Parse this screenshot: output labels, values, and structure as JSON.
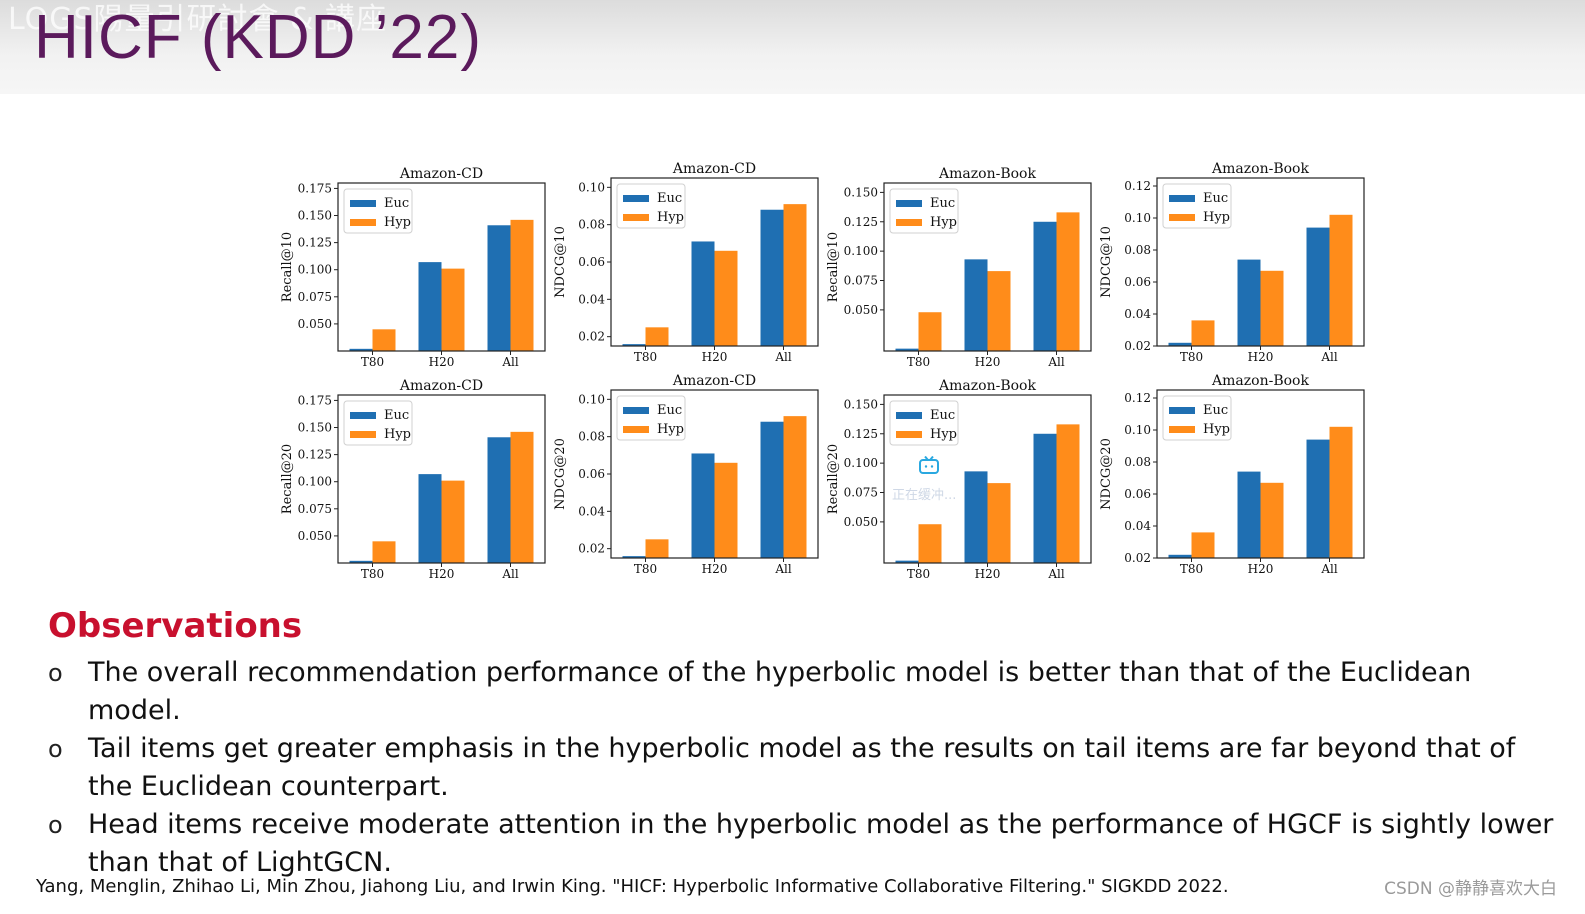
{
  "header": {
    "title": "HICF (KDD ’22)",
    "ghost_text": "LOGS陽量引研討會 & 講座"
  },
  "colors": {
    "euc": "#1f6fb2",
    "hyp": "#ff8c1a",
    "title": "#5b1a5c",
    "heading": "#c8102e"
  },
  "chart_data": [
    {
      "type": "bar",
      "title": "Amazon-CD",
      "ylabel": "Recall@10",
      "categories": [
        "T80",
        "H20",
        "All"
      ],
      "series": [
        {
          "name": "Euc",
          "values": [
            0.027,
            0.107,
            0.141
          ]
        },
        {
          "name": "Hyp",
          "values": [
            0.045,
            0.101,
            0.146
          ]
        }
      ],
      "ylim": [
        0.025,
        0.18
      ],
      "ticks": [
        0.05,
        0.075,
        0.1,
        0.125,
        0.15,
        0.175
      ],
      "tick_labels": [
        "0.050",
        "0.075",
        "0.100",
        "0.125",
        "0.150",
        "0.175"
      ],
      "legend": "top-left"
    },
    {
      "type": "bar",
      "title": "Amazon-CD",
      "ylabel": "NDCG@10",
      "categories": [
        "T80",
        "H20",
        "All"
      ],
      "series": [
        {
          "name": "Euc",
          "values": [
            0.016,
            0.071,
            0.088
          ]
        },
        {
          "name": "Hyp",
          "values": [
            0.025,
            0.066,
            0.091
          ]
        }
      ],
      "ylim": [
        0.015,
        0.105
      ],
      "ticks": [
        0.02,
        0.04,
        0.06,
        0.08,
        0.1
      ],
      "tick_labels": [
        "0.02",
        "0.04",
        "0.06",
        "0.08",
        "0.10"
      ],
      "legend": "top-left"
    },
    {
      "type": "bar",
      "title": "Amazon-Book",
      "ylabel": "Recall@10",
      "categories": [
        "T80",
        "H20",
        "All"
      ],
      "series": [
        {
          "name": "Euc",
          "values": [
            0.017,
            0.093,
            0.125
          ]
        },
        {
          "name": "Hyp",
          "values": [
            0.048,
            0.083,
            0.133
          ]
        }
      ],
      "ylim": [
        0.015,
        0.158
      ],
      "ticks": [
        0.05,
        0.075,
        0.1,
        0.125,
        0.15
      ],
      "tick_labels": [
        "0.050",
        "0.075",
        "0.100",
        "0.125",
        "0.150"
      ],
      "legend": "top-left"
    },
    {
      "type": "bar",
      "title": "Amazon-Book",
      "ylabel": "NDCG@10",
      "categories": [
        "T80",
        "H20",
        "All"
      ],
      "series": [
        {
          "name": "Euc",
          "values": [
            0.022,
            0.074,
            0.094
          ]
        },
        {
          "name": "Hyp",
          "values": [
            0.036,
            0.067,
            0.102
          ]
        }
      ],
      "ylim": [
        0.02,
        0.125
      ],
      "ticks": [
        0.02,
        0.04,
        0.06,
        0.08,
        0.1,
        0.12
      ],
      "tick_labels": [
        "0.02",
        "0.04",
        "0.06",
        "0.08",
        "0.10",
        "0.12"
      ],
      "legend": "top-left"
    },
    {
      "type": "bar",
      "title": "Amazon-CD",
      "ylabel": "Recall@20",
      "categories": [
        "T80",
        "H20",
        "All"
      ],
      "series": [
        {
          "name": "Euc",
          "values": [
            0.027,
            0.107,
            0.141
          ]
        },
        {
          "name": "Hyp",
          "values": [
            0.045,
            0.101,
            0.146
          ]
        }
      ],
      "ylim": [
        0.025,
        0.18
      ],
      "ticks": [
        0.05,
        0.075,
        0.1,
        0.125,
        0.15,
        0.175
      ],
      "tick_labels": [
        "0.050",
        "0.075",
        "0.100",
        "0.125",
        "0.150",
        "0.175"
      ],
      "legend": "top-left"
    },
    {
      "type": "bar",
      "title": "Amazon-CD",
      "ylabel": "NDCG@20",
      "categories": [
        "T80",
        "H20",
        "All"
      ],
      "series": [
        {
          "name": "Euc",
          "values": [
            0.016,
            0.071,
            0.088
          ]
        },
        {
          "name": "Hyp",
          "values": [
            0.025,
            0.066,
            0.091
          ]
        }
      ],
      "ylim": [
        0.015,
        0.105
      ],
      "ticks": [
        0.02,
        0.04,
        0.06,
        0.08,
        0.1
      ],
      "tick_labels": [
        "0.02",
        "0.04",
        "0.06",
        "0.08",
        "0.10"
      ],
      "legend": "top-left"
    },
    {
      "type": "bar",
      "title": "Amazon-Book",
      "ylabel": "Recall@20",
      "categories": [
        "T80",
        "H20",
        "All"
      ],
      "series": [
        {
          "name": "Euc",
          "values": [
            0.017,
            0.093,
            0.125
          ]
        },
        {
          "name": "Hyp",
          "values": [
            0.048,
            0.083,
            0.133
          ]
        }
      ],
      "ylim": [
        0.015,
        0.158
      ],
      "ticks": [
        0.05,
        0.075,
        0.1,
        0.125,
        0.15
      ],
      "tick_labels": [
        "0.050",
        "0.075",
        "0.100",
        "0.125",
        "0.150"
      ],
      "legend": "top-left"
    },
    {
      "type": "bar",
      "title": "Amazon-Book",
      "ylabel": "NDCG@20",
      "categories": [
        "T80",
        "H20",
        "All"
      ],
      "series": [
        {
          "name": "Euc",
          "values": [
            0.022,
            0.074,
            0.094
          ]
        },
        {
          "name": "Hyp",
          "values": [
            0.036,
            0.067,
            0.102
          ]
        }
      ],
      "ylim": [
        0.02,
        0.125
      ],
      "ticks": [
        0.02,
        0.04,
        0.06,
        0.08,
        0.1,
        0.12
      ],
      "tick_labels": [
        "0.02",
        "0.04",
        "0.06",
        "0.08",
        "0.10",
        "0.12"
      ],
      "legend": "top-left"
    }
  ],
  "observations": {
    "heading": "Observations",
    "bullet": "o",
    "items": [
      "The overall recommendation performance of the hyperbolic model is better than that of the Euclidean model.",
      "Tail items get greater emphasis in the hyperbolic model as the results on tail items are far beyond that of the Euclidean counterpart.",
      "Head items receive moderate attention in the hyperbolic model as the performance of HGCF is sightly lower than that of LightGCN."
    ]
  },
  "reference": "Yang, Menglin, Zhihao Li, Min Zhou, Jiahong Liu, and Irwin King. \"HICF: Hyperbolic Informative Collaborative Filtering.\"  SIGKDD 2022.",
  "watermark": "CSDN @静静喜欢大白",
  "overlay": {
    "icon": "tv-icon",
    "text": "正在缓冲..."
  }
}
